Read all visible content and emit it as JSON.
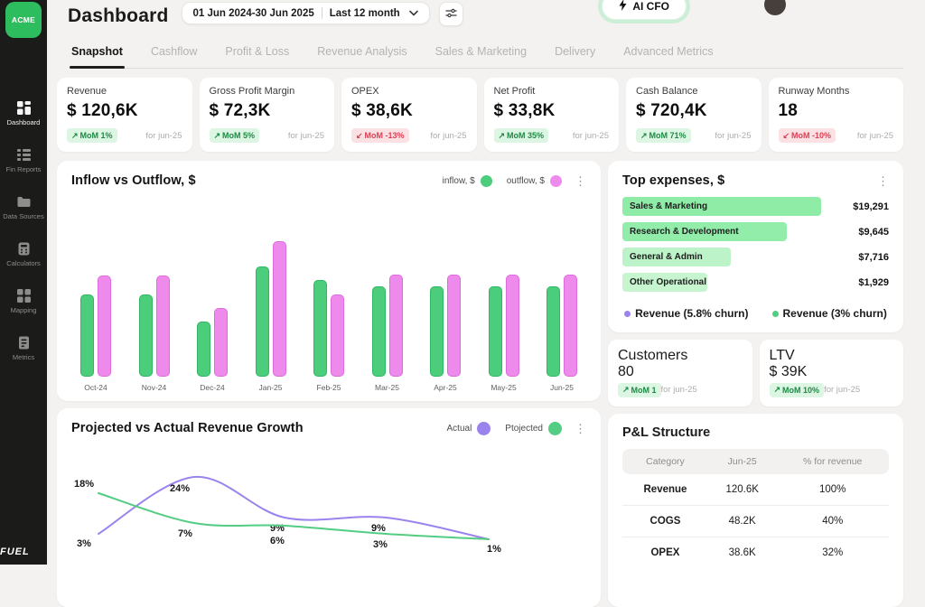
{
  "sidebar": {
    "logo_text": "ACME",
    "footer_logo_text": "FUEL",
    "items": [
      {
        "label": "Dashboard",
        "icon": "dashboard-icon",
        "active": true
      },
      {
        "label": "Fin Reports",
        "icon": "fin-reports-icon",
        "active": false
      },
      {
        "label": "Data Sources",
        "icon": "data-sources-icon",
        "active": false
      },
      {
        "label": "Calculators",
        "icon": "calculators-icon",
        "active": false
      },
      {
        "label": "Mapping",
        "icon": "mapping-icon",
        "active": false
      },
      {
        "label": "Metrics",
        "icon": "metrics-icon",
        "active": false
      }
    ]
  },
  "header": {
    "title": "Dashboard",
    "date_range": "01 Jun 2024-30 Jun 2025",
    "period_selector": "Last 12 month",
    "ai_cfo_label": "AI CFO"
  },
  "tabs": [
    {
      "label": "Snapshot",
      "active": true
    },
    {
      "label": "Cashflow",
      "active": false
    },
    {
      "label": "Profit & Loss",
      "active": false
    },
    {
      "label": "Revenue Analysis",
      "active": false
    },
    {
      "label": "Sales & Marketing",
      "active": false
    },
    {
      "label": "Delivery",
      "active": false
    },
    {
      "label": "Advanced Metrics",
      "active": false
    }
  ],
  "kpis": [
    {
      "label": "Revenue",
      "value": "$ 120,6K",
      "badge": "MoM 1%",
      "trend": "up",
      "period": "for jun-25"
    },
    {
      "label": "Gross Profit Margin",
      "value": "$ 72,3K",
      "badge": "MoM 5%",
      "trend": "up",
      "period": "for jun-25"
    },
    {
      "label": "OPEX",
      "value": "$ 38,6K",
      "badge": "MoM -13%",
      "trend": "down",
      "period": "for jun-25"
    },
    {
      "label": "Net Profit",
      "value": "$ 33,8K",
      "badge": "MoM 35%",
      "trend": "up",
      "period": "for jun-25"
    },
    {
      "label": "Cash Balance",
      "value": "$ 720,4K",
      "badge": "MoM 71%",
      "trend": "up",
      "period": "for jun-25"
    },
    {
      "label": "Runway Months",
      "value": "18",
      "badge": "MoM -10%",
      "trend": "down",
      "period": "for jun-25"
    }
  ],
  "mini_cards": [
    {
      "label": "Customers",
      "value": "80",
      "badge": "MoM 1",
      "trend": "up",
      "period": "for jun-25"
    },
    {
      "label": "LTV",
      "value": "$ 39K",
      "badge": "MoM 10%",
      "trend": "up",
      "period": "for jun-25"
    }
  ],
  "pnl": {
    "title": "P&L Structure",
    "columns": [
      "Category",
      "Jun-25",
      "% for revenue"
    ],
    "rows": [
      [
        "Revenue",
        "120.6K",
        "100%"
      ],
      [
        "COGS",
        "48.2K",
        "40%"
      ],
      [
        "OPEX",
        "38.6K",
        "32%"
      ]
    ]
  },
  "chart_data": [
    {
      "id": "inflow_outflow",
      "type": "bar",
      "title": "Inflow vs Outflow, $",
      "categories": [
        "Oct-24",
        "Nov-24",
        "Dec-24",
        "Jan-25",
        "Feb-25",
        "Mar-25",
        "Apr-25",
        "May-25",
        "Jun-25"
      ],
      "series": [
        {
          "name": "inflow, $",
          "color": "#4ccd7c",
          "values": [
            60,
            60,
            40,
            81,
            71,
            66,
            66,
            66,
            66
          ]
        },
        {
          "name": "outflow, $",
          "color": "#ef8aed",
          "values": [
            74,
            74,
            50,
            100,
            60,
            75,
            75,
            75,
            75
          ]
        }
      ],
      "units": "relative height, % of tallest bar",
      "grid": false,
      "legend_position": "top-right"
    },
    {
      "id": "revenue_growth",
      "type": "line",
      "title": "Projected vs Actual Revenue Growth",
      "x": [
        1,
        2,
        3,
        4,
        5
      ],
      "series": [
        {
          "name": "Actual",
          "color": "#9b83ee",
          "values": [
            3,
            24,
            9,
            9,
            1
          ],
          "point_labels": [
            "3%",
            "24%",
            "9%",
            "9%",
            "1%"
          ]
        },
        {
          "name": "Ptojected",
          "color": "#52cd82",
          "values": [
            18,
            7,
            6,
            3,
            1
          ],
          "point_labels": [
            "18%",
            "7%",
            "6%",
            "3%",
            ""
          ]
        }
      ],
      "unit": "%",
      "grid": false,
      "legend_position": "top-right"
    },
    {
      "id": "top_expenses",
      "type": "bar",
      "orientation": "horizontal",
      "title": "Top expenses, $",
      "categories": [
        "Sales & Marketing",
        "Research & Development",
        "General & Admin",
        "Other Operational"
      ],
      "values": [
        19291,
        9645,
        7716,
        1929
      ],
      "value_labels": [
        "$19,291",
        "$9,645",
        "$7,716",
        "$1,929"
      ],
      "bar_colors": [
        "#8feca7",
        "#93edaa",
        "#bdf3c9",
        "#c6f5d0"
      ],
      "bar_width_pct": [
        72,
        59,
        38,
        29
      ],
      "legend": [
        {
          "label": "Revenue (5.8% churn)",
          "color": "#9b83ee"
        },
        {
          "label": "Revenue (3% churn)",
          "color": "#52cd82"
        }
      ]
    }
  ],
  "colors": {
    "accent_green": "#2ebd5e",
    "bar_green": "#4ccd7c",
    "bar_pink": "#ef8aed",
    "line_purple": "#9b83ee",
    "badge_green_bg": "#dcf6e3",
    "badge_green_text": "#1d8a44",
    "badge_red_bg": "#fbe1e4",
    "badge_red_text": "#dc4054"
  }
}
